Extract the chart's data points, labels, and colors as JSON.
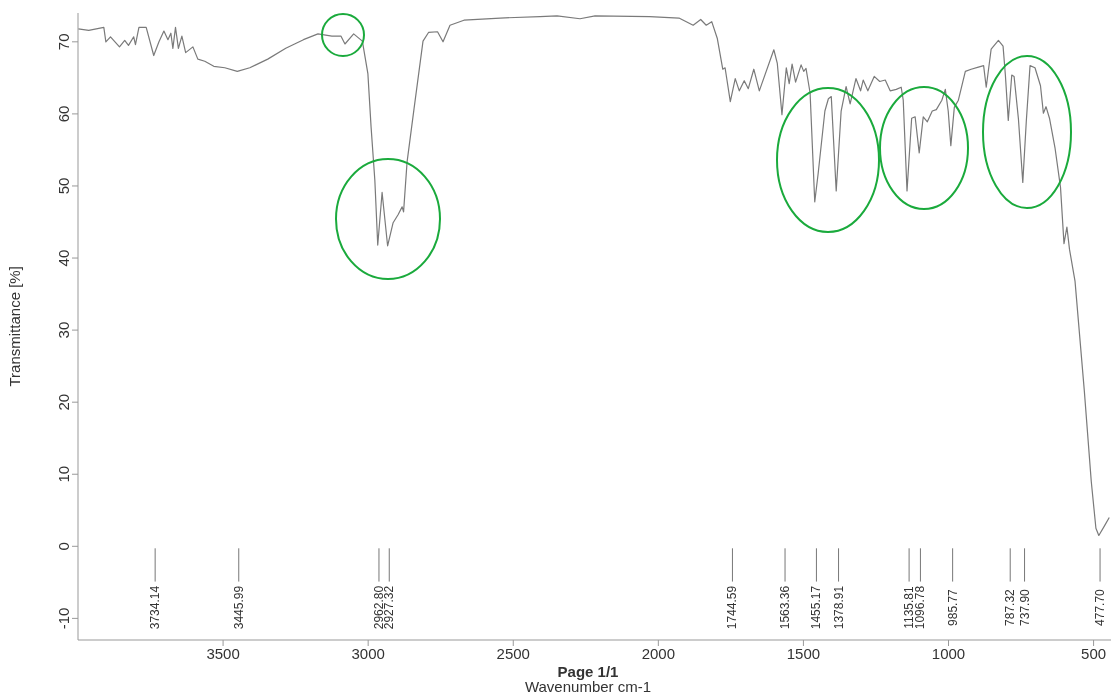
{
  "chart_data": {
    "type": "line",
    "xlabel": "Wavenumber cm-1",
    "ylabel": "Transmittance [%]",
    "xlim": [
      4000,
      440
    ],
    "xticks": [
      3500,
      3000,
      2500,
      2000,
      1500,
      1000,
      500
    ],
    "ylim": [
      -13,
      74
    ],
    "yticks": [
      -10,
      0,
      10,
      20,
      30,
      40,
      50,
      60,
      70
    ],
    "grid": false,
    "legend": false,
    "marker": "none",
    "line_style": "solid",
    "series": [
      {
        "color": "#7a7a7a",
        "x": [
          3999,
          3963,
          3911,
          3904,
          3888,
          3857,
          3839,
          3826,
          3808,
          3802,
          3790,
          3765,
          3739,
          3721,
          3704,
          3690,
          3680,
          3673,
          3664,
          3654,
          3642,
          3629,
          3604,
          3587,
          3563,
          3532,
          3494,
          3451,
          3408,
          3346,
          3284,
          3223,
          3173,
          3125,
          3094,
          3080,
          3050,
          3020,
          3001,
          2990,
          2977,
          2967,
          2952,
          2933,
          2914,
          2897,
          2883,
          2878,
          2866,
          2842,
          2811,
          2792,
          2761,
          2742,
          2718,
          2670,
          2545,
          2408,
          2349,
          2270,
          2218,
          2030,
          1929,
          1880,
          1854,
          1835,
          1816,
          1797,
          1778,
          1770,
          1752,
          1735,
          1721,
          1704,
          1690,
          1671,
          1652,
          1602,
          1590,
          1574,
          1559,
          1549,
          1539,
          1527,
          1508,
          1499,
          1491,
          1477,
          1461,
          1449,
          1426,
          1414,
          1404,
          1387,
          1370,
          1353,
          1339,
          1319,
          1303,
          1294,
          1278,
          1256,
          1237,
          1218,
          1201,
          1180,
          1163,
          1156,
          1143,
          1127,
          1115,
          1101,
          1087,
          1073,
          1056,
          1042,
          1023,
          1011,
          1001,
          992,
          980,
          966,
          942,
          922,
          897,
          879,
          870,
          853,
          828,
          812,
          804,
          794,
          782,
          774,
          759,
          744,
          732,
          719,
          702,
          683,
          673,
          664,
          652,
          633,
          614,
          602,
          592,
          583,
          564,
          532,
          508,
          492,
          482,
          463,
          446
        ],
        "values": [
          71.8,
          71.6,
          72.0,
          70.0,
          70.7,
          69.3,
          70.2,
          69.5,
          70.7,
          69.6,
          72.0,
          72.0,
          68.1,
          70.0,
          71.5,
          70.3,
          71.2,
          69.1,
          72.0,
          69.1,
          70.8,
          68.5,
          69.3,
          67.6,
          67.3,
          66.6,
          66.4,
          65.9,
          66.4,
          67.6,
          69.1,
          70.3,
          71.1,
          70.8,
          70.8,
          69.7,
          71.1,
          70.1,
          65.6,
          58.2,
          50.8,
          41.8,
          49.1,
          41.7,
          44.9,
          46.0,
          47.1,
          46.4,
          53.3,
          60.7,
          70.1,
          71.3,
          71.4,
          70.0,
          72.3,
          73.0,
          73.3,
          73.5,
          73.6,
          73.2,
          73.6,
          73.5,
          73.3,
          72.3,
          73.1,
          72.3,
          72.8,
          70.5,
          66.2,
          66.4,
          61.7,
          64.9,
          63.2,
          64.6,
          63.5,
          66.2,
          63.2,
          68.9,
          67.0,
          59.9,
          66.4,
          64.2,
          66.9,
          64.4,
          66.8,
          65.9,
          66.3,
          62.9,
          47.8,
          51.8,
          60.4,
          62.1,
          62.4,
          49.3,
          60.4,
          63.8,
          61.4,
          64.9,
          63.2,
          64.7,
          63.2,
          65.2,
          64.5,
          64.7,
          63.2,
          63.4,
          63.7,
          61.9,
          49.3,
          59.4,
          59.6,
          54.6,
          59.6,
          58.9,
          60.4,
          60.6,
          61.9,
          63.4,
          60.4,
          55.6,
          60.9,
          61.9,
          65.9,
          66.2,
          66.5,
          66.7,
          63.7,
          69.0,
          70.2,
          69.4,
          65.4,
          59.1,
          65.4,
          65.2,
          59.3,
          50.5,
          58.9,
          66.7,
          66.4,
          63.9,
          60.1,
          61.0,
          59.4,
          55.3,
          49.8,
          42.0,
          44.3,
          41.2,
          36.8,
          21.6,
          9.0,
          2.5,
          1.5,
          2.8,
          4.0
        ]
      }
    ],
    "annotations": [
      {
        "text": "3734.14",
        "x": 3734.14
      },
      {
        "text": "3445.99",
        "x": 3445.99
      },
      {
        "text": "2962.80",
        "x": 2962.8
      },
      {
        "text": "2927.32",
        "x": 2927.32
      },
      {
        "text": "1744.59",
        "x": 1744.59
      },
      {
        "text": "1563.36",
        "x": 1563.36
      },
      {
        "text": "1455.17",
        "x": 1455.17
      },
      {
        "text": "1378.91",
        "x": 1378.91
      },
      {
        "text": "1135.81",
        "x": 1135.81
      },
      {
        "text": "1096.78",
        "x": 1096.78
      },
      {
        "text": "985.77",
        "x": 985.77
      },
      {
        "text": "787.32",
        "x": 787.32
      },
      {
        "text": "737.90",
        "x": 737.9
      },
      {
        "text": "477.70",
        "x": 477.7
      },
      "Page 1/1"
    ]
  }
}
